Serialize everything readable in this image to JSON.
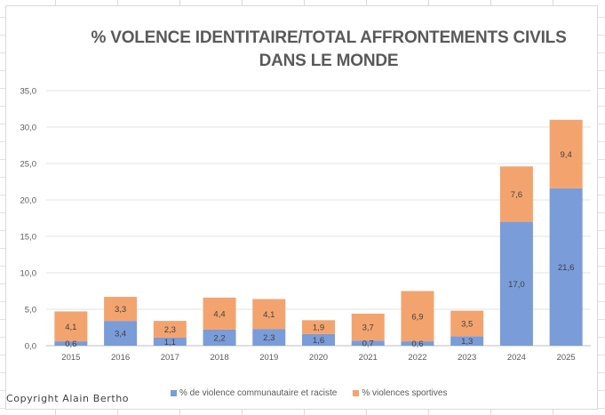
{
  "copyright": "Copyright Alain Bertho",
  "colors": {
    "communautaire": "#7A9CD9",
    "sportives": "#F3A46E",
    "gridline": "#e3e3e3",
    "axis_text": "#595959",
    "label_text": "#404040"
  },
  "chart_data": {
    "type": "bar",
    "stacked": true,
    "title": "% VOLENCE IDENTITAIRE/TOTAL AFFRONTEMENTS CIVILS",
    "title_line2": "DANS LE MONDE",
    "xlabel": "",
    "ylabel": "",
    "ylim": [
      0,
      35
    ],
    "yticks": [
      0,
      5,
      10,
      15,
      20,
      25,
      30,
      35
    ],
    "ytick_labels": [
      "0,0",
      "5,0",
      "10,0",
      "15,0",
      "20,0",
      "25,0",
      "30,0",
      "35,0"
    ],
    "grid": true,
    "legend_position": "bottom",
    "categories": [
      "2015",
      "2016",
      "2017",
      "2018",
      "2019",
      "2020",
      "2021",
      "2022",
      "2023",
      "2024",
      "2025"
    ],
    "series": [
      {
        "name": "% de violence communautaire et raciste",
        "key": "communautaire",
        "values": [
          0.6,
          3.4,
          1.1,
          2.2,
          2.3,
          1.6,
          0.7,
          0.6,
          1.3,
          17.0,
          21.6
        ],
        "labels": [
          "0,6",
          "3,4",
          "1,1",
          "2,2",
          "2,3",
          "1,6",
          "0,7",
          "0,6",
          "1,3",
          "17,0",
          "21,6"
        ]
      },
      {
        "name": "% violences sportives",
        "key": "sportives",
        "values": [
          4.1,
          3.3,
          2.3,
          4.4,
          4.1,
          1.9,
          3.7,
          6.9,
          3.5,
          7.6,
          9.4
        ],
        "labels": [
          "4,1",
          "3,3",
          "2,3",
          "4,4",
          "4,1",
          "1,9",
          "3,7",
          "6,9",
          "3,5",
          "7,6",
          "9,4"
        ]
      }
    ]
  }
}
